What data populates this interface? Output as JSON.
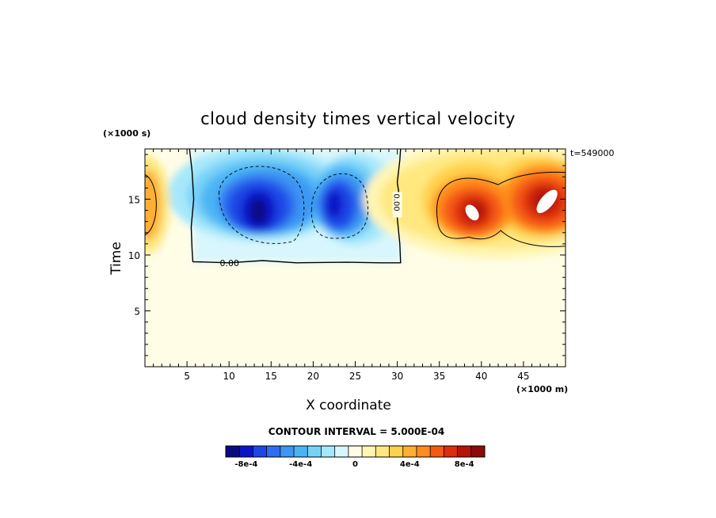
{
  "chart_data": {
    "type": "heatmap",
    "title": "cloud density times vertical velocity",
    "xlabel": "X coordinate",
    "ylabel": "Time",
    "x_units": "(×1000 m)",
    "y_units": "(×1000 s)",
    "timestamp": "t=549000",
    "xlim": [
      0,
      50
    ],
    "ylim": [
      0,
      19.5
    ],
    "x_ticks": [
      5,
      10,
      15,
      20,
      25,
      30,
      35,
      40,
      45
    ],
    "y_ticks": [
      5,
      10,
      15
    ],
    "zero_contour_label": "0.00",
    "zero_contour_label_at": [
      8.9,
      9.3
    ],
    "contour_interval_text": "CONTOUR INTERVAL = 5.000E-04",
    "colorbar": {
      "colors": [
        "#0a0a80",
        "#0b14c8",
        "#1e46e6",
        "#2f6ef0",
        "#3c96f2",
        "#4bb4f5",
        "#78d2f8",
        "#a6e8fb",
        "#d8f6fd",
        "#fffde6",
        "#fff6b4",
        "#ffe880",
        "#ffd24b",
        "#ffaf30",
        "#ff8c1e",
        "#f55a14",
        "#dc2d0c",
        "#b4140a",
        "#8c0a0a"
      ],
      "tick_labels": [
        "-8e-4",
        "-4e-4",
        "0",
        "4e-4",
        "8e-4"
      ],
      "tick_values": [
        -0.0008,
        -0.0004,
        0,
        0.0004,
        0.0008
      ]
    },
    "features": [
      {
        "name": "negative cell",
        "x": 13,
        "y": 14.2,
        "peak": -0.00095
      },
      {
        "name": "negative cell",
        "x": 23,
        "y": 14.5,
        "peak": -0.00078
      },
      {
        "name": "positive cell",
        "x": 39,
        "y": 13.8,
        "peak": 0.0011
      },
      {
        "name": "positive cell",
        "x": 47.5,
        "y": 14.8,
        "peak": 0.0011
      },
      {
        "name": "positive cell",
        "x": 0.5,
        "y": 14.5,
        "peak": 0.00045
      }
    ]
  }
}
